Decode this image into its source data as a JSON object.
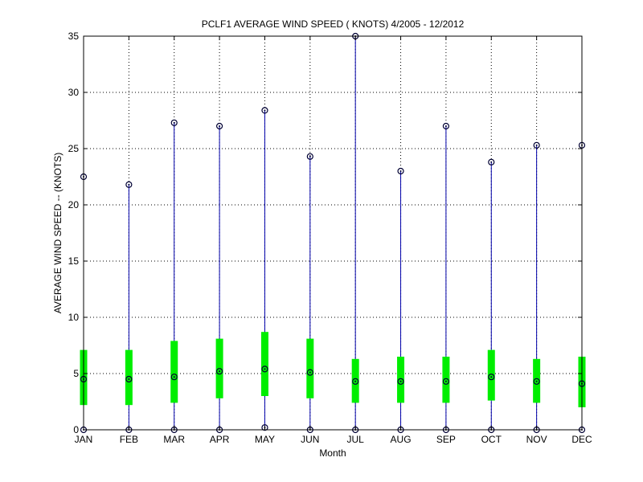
{
  "chart_data": {
    "type": "box",
    "title": "PCLF1  AVERAGE WIND SPEED ( KNOTS) 4/2005 - 12/2012",
    "xlabel": "Month",
    "ylabel": "AVERAGE WIND SPEED -- (KNOTS)",
    "ylim": [
      0,
      35
    ],
    "yticks": [
      0,
      5,
      10,
      15,
      20,
      25,
      30,
      35
    ],
    "grid": true,
    "categories": [
      "JAN",
      "FEB",
      "MAR",
      "APR",
      "MAY",
      "JUN",
      "JUL",
      "AUG",
      "SEP",
      "OCT",
      "NOV",
      "DEC"
    ],
    "series": [
      {
        "min": [
          0.0,
          0.0,
          0.0,
          0.0,
          0.2,
          0.0,
          0.0,
          0.0,
          0.0,
          0.0,
          0.0,
          0.0
        ],
        "q1": [
          2.2,
          2.2,
          2.4,
          2.8,
          3.0,
          2.8,
          2.4,
          2.4,
          2.4,
          2.6,
          2.4,
          2.0
        ],
        "median": [
          4.5,
          4.5,
          4.7,
          5.2,
          5.4,
          5.1,
          4.3,
          4.3,
          4.3,
          4.7,
          4.3,
          4.1
        ],
        "q3": [
          7.1,
          7.1,
          7.9,
          8.1,
          8.7,
          8.1,
          6.3,
          6.5,
          6.5,
          7.1,
          6.3,
          6.5
        ],
        "max": [
          22.5,
          21.8,
          27.3,
          27.0,
          28.4,
          24.3,
          35.0,
          23.0,
          27.0,
          23.8,
          25.3,
          25.3
        ]
      }
    ],
    "colors": {
      "whisker": "#0000aa",
      "box": "#00ee00",
      "marker": "#000033",
      "grid": "#000000"
    }
  }
}
